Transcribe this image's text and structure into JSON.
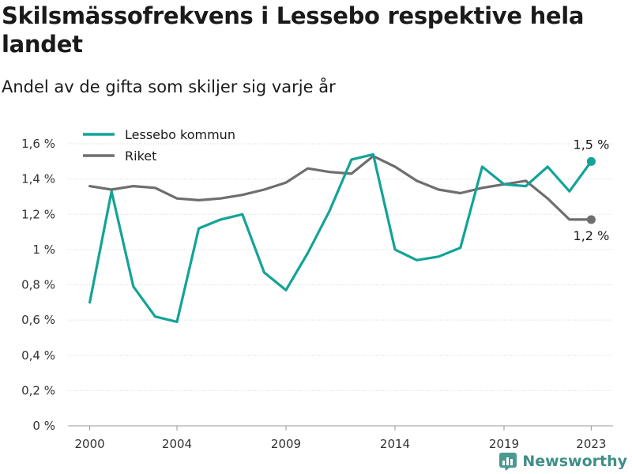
{
  "header": {
    "title": "Skilsmässofrekvens i Lessebo respektive hela landet",
    "subtitle": "Andel av de gifta som skiljer sig varje år"
  },
  "brand": {
    "name": "Newsworthy",
    "icon": "newsworthy-logo-icon",
    "color": "#4a9a90"
  },
  "chart_data": {
    "type": "line",
    "title": "Skilsmässofrekvens i Lessebo respektive hela landet",
    "subtitle": "Andel av de gifta som skiljer sig varje år",
    "xlabel": "",
    "ylabel": "",
    "x": [
      2000,
      2001,
      2002,
      2003,
      2004,
      2005,
      2006,
      2007,
      2008,
      2009,
      2010,
      2011,
      2012,
      2013,
      2014,
      2015,
      2016,
      2017,
      2018,
      2019,
      2020,
      2021,
      2022,
      2023
    ],
    "xlim": [
      1999,
      2024
    ],
    "x_ticks": [
      {
        "value": 2000,
        "label": "2000"
      },
      {
        "value": 2004,
        "label": "2004"
      },
      {
        "value": 2009,
        "label": "2009"
      },
      {
        "value": 2014,
        "label": "2014"
      },
      {
        "value": 2019,
        "label": "2019"
      },
      {
        "value": 2023,
        "label": "2023"
      }
    ],
    "ylim": [
      0,
      1.6
    ],
    "y_ticks": [
      {
        "value": 0,
        "label": "0 %"
      },
      {
        "value": 0.2,
        "label": "0,2 %"
      },
      {
        "value": 0.4,
        "label": "0,4 %"
      },
      {
        "value": 0.6,
        "label": "0,6 %"
      },
      {
        "value": 0.8,
        "label": "0,8 %"
      },
      {
        "value": 1.0,
        "label": "1 %"
      },
      {
        "value": 1.2,
        "label": "1,2 %"
      },
      {
        "value": 1.4,
        "label": "1,4 %"
      },
      {
        "value": 1.6,
        "label": "1,6 %"
      }
    ],
    "grid": true,
    "legend": "top-left",
    "series": [
      {
        "name": "Lessebo kommun",
        "color": "#13a397",
        "values": [
          0.7,
          1.33,
          0.79,
          0.62,
          0.59,
          1.12,
          1.17,
          1.2,
          0.87,
          0.77,
          0.98,
          1.22,
          1.51,
          1.54,
          1.0,
          0.94,
          0.96,
          1.01,
          1.47,
          1.37,
          1.36,
          1.47,
          1.33,
          1.5
        ],
        "end_label": "1,5 %"
      },
      {
        "name": "Riket",
        "color": "#6e6e6e",
        "values": [
          1.36,
          1.34,
          1.36,
          1.35,
          1.29,
          1.28,
          1.29,
          1.31,
          1.34,
          1.38,
          1.46,
          1.44,
          1.43,
          1.53,
          1.47,
          1.39,
          1.34,
          1.32,
          1.35,
          1.37,
          1.39,
          1.29,
          1.17,
          1.17
        ],
        "end_label": "1,2 %"
      }
    ]
  }
}
